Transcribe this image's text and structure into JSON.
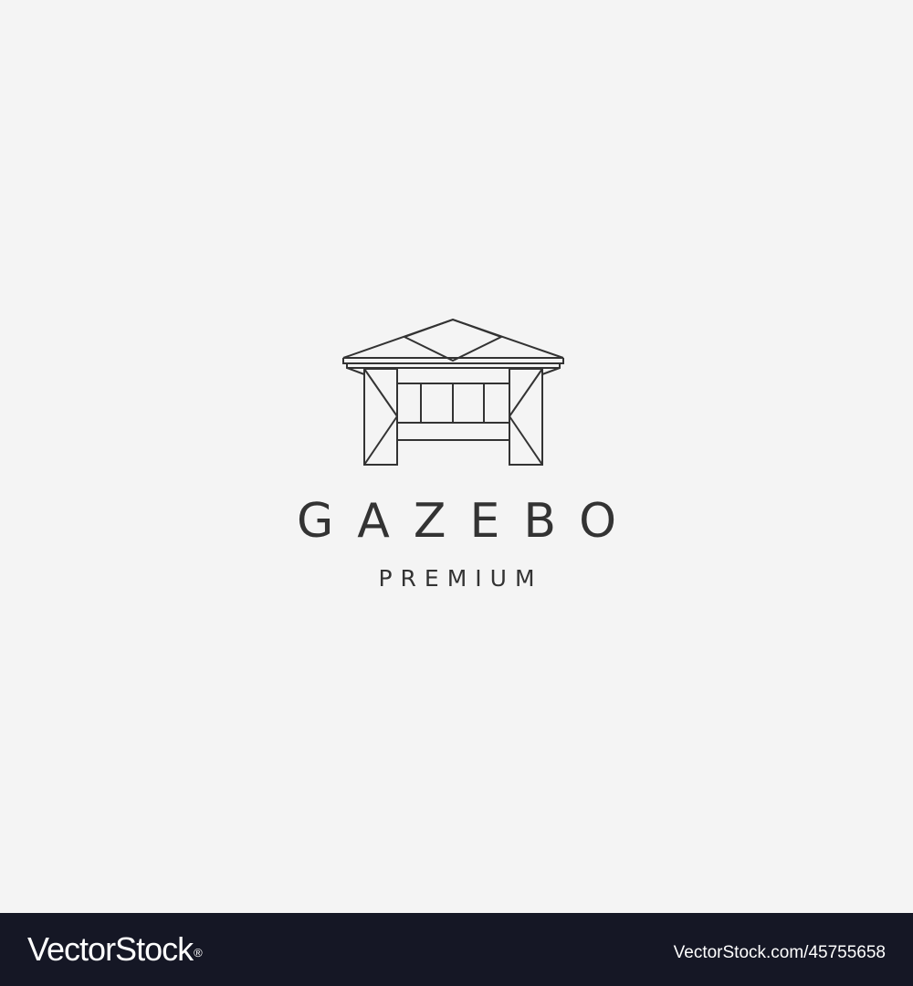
{
  "logo": {
    "icon": "gazebo-icon",
    "line_color": "#333333",
    "background": "#f4f4f4"
  },
  "brand": {
    "name": "GAZEBO",
    "tagline": "PREMIUM",
    "text_color": "#333333"
  },
  "footer": {
    "site": "VectorStock",
    "registered_mark": "®",
    "image_id": "VectorStock.com/45755658",
    "background": "#151725"
  }
}
